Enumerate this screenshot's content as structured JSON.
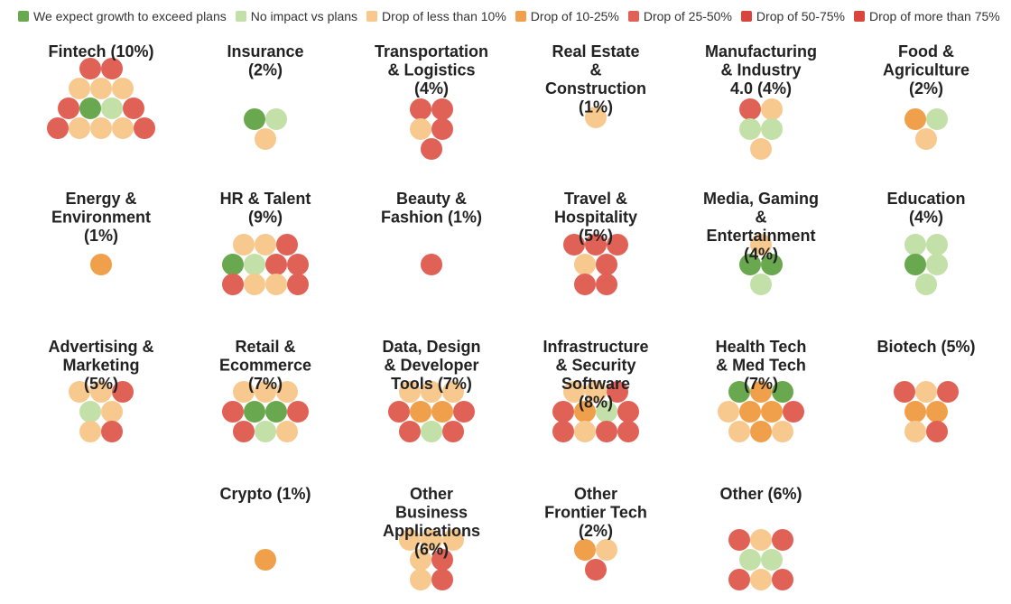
{
  "chart_data": {
    "type": "bubble-grid",
    "categories": [
      {
        "key": "no_growth",
        "label": "We expect growth to exceed plans",
        "color": "#6aa84f"
      },
      {
        "key": "no_impact",
        "label": "No impact vs plans",
        "color": "#c2e0a8"
      },
      {
        "key": "drop_lt10",
        "label": "Drop of less than 10%",
        "color": "#f7c98f"
      },
      {
        "key": "drop_10_25",
        "label": "Drop of 10-25%",
        "color": "#f0a04a"
      },
      {
        "key": "drop_25_50",
        "label": "Drop of 25-50%",
        "color": "#e06155"
      },
      {
        "key": "drop_50_75",
        "label": "Drop of 50-75%",
        "color": "#d9453d"
      },
      {
        "key": "drop_gt75",
        "label": "Drop of more than 75%",
        "color": "#d9453d"
      }
    ],
    "panels": [
      {
        "title": "Fintech (10%)",
        "dots": [
          "drop_25_50",
          "drop_25_50",
          "drop_lt10",
          "drop_lt10",
          "drop_lt10",
          "drop_25_50",
          "no_growth",
          "no_impact",
          "drop_25_50",
          "drop_25_50",
          "drop_lt10",
          "drop_lt10",
          "drop_lt10",
          "drop_25_50"
        ]
      },
      {
        "title": "Insurance (2%)",
        "dots": [
          "no_growth",
          "no_impact",
          "drop_lt10"
        ]
      },
      {
        "title": "Transportation & Logistics (4%)",
        "dots": [
          "drop_25_50",
          "drop_25_50",
          "drop_lt10",
          "drop_25_50",
          "drop_25_50"
        ]
      },
      {
        "title": "Real Estate & Construction (1%)",
        "dots": [
          "drop_lt10"
        ]
      },
      {
        "title": "Manufacturing & Industry 4.0 (4%)",
        "dots": [
          "drop_25_50",
          "drop_lt10",
          "no_impact",
          "no_impact",
          "drop_lt10"
        ]
      },
      {
        "title": "Food & Agriculture (2%)",
        "dots": [
          "drop_10_25",
          "no_impact",
          "drop_lt10"
        ]
      },
      {
        "title": "Energy & Environment (1%)",
        "dots": [
          "drop_10_25"
        ]
      },
      {
        "title": "HR & Talent (9%)",
        "dots": [
          "drop_lt10",
          "drop_lt10",
          "drop_25_50",
          "no_growth",
          "no_impact",
          "drop_25_50",
          "drop_25_50",
          "drop_25_50",
          "drop_lt10",
          "drop_lt10",
          "drop_25_50"
        ]
      },
      {
        "title": "Beauty & Fashion (1%)",
        "dots": [
          "drop_25_50"
        ]
      },
      {
        "title": "Travel & Hospitality (5%)",
        "dots": [
          "drop_25_50",
          "drop_25_50",
          "drop_25_50",
          "drop_lt10",
          "drop_25_50",
          "drop_25_50",
          "drop_25_50"
        ]
      },
      {
        "title": "Media, Gaming & Entertainment (4%)",
        "dots": [
          "drop_lt10",
          "no_growth",
          "no_growth",
          "no_impact"
        ]
      },
      {
        "title": "Education (4%)",
        "dots": [
          "no_impact",
          "no_impact",
          "no_growth",
          "no_impact",
          "no_impact"
        ]
      },
      {
        "title": "Advertising & Marketing (5%)",
        "dots": [
          "drop_lt10",
          "drop_lt10",
          "drop_25_50",
          "no_impact",
          "drop_lt10",
          "drop_lt10",
          "drop_25_50"
        ]
      },
      {
        "title": "Retail & Ecommerce (7%)",
        "dots": [
          "drop_lt10",
          "drop_lt10",
          "drop_lt10",
          "drop_25_50",
          "no_growth",
          "no_growth",
          "drop_25_50",
          "drop_25_50",
          "no_impact",
          "drop_lt10"
        ]
      },
      {
        "title": "Data, Design & Developer Tools (7%)",
        "dots": [
          "drop_lt10",
          "drop_lt10",
          "drop_lt10",
          "drop_25_50",
          "drop_10_25",
          "drop_10_25",
          "drop_25_50",
          "drop_25_50",
          "no_impact",
          "drop_25_50"
        ]
      },
      {
        "title": "Infrastructure & Security Software (8%)",
        "dots": [
          "drop_lt10",
          "drop_lt10",
          "drop_25_50",
          "drop_25_50",
          "drop_10_25",
          "no_impact",
          "drop_25_50",
          "drop_25_50",
          "drop_lt10",
          "drop_25_50",
          "drop_25_50"
        ]
      },
      {
        "title": "Health Tech & Med Tech (7%)",
        "dots": [
          "no_growth",
          "drop_10_25",
          "no_growth",
          "drop_lt10",
          "drop_10_25",
          "drop_10_25",
          "drop_25_50",
          "drop_lt10",
          "drop_10_25",
          "drop_lt10"
        ]
      },
      {
        "title": "Biotech (5%)",
        "dots": [
          "drop_25_50",
          "drop_lt10",
          "drop_25_50",
          "drop_10_25",
          "drop_10_25",
          "drop_lt10",
          "drop_25_50"
        ]
      },
      {
        "title": "Crypto (1%)",
        "dots": [
          "drop_10_25"
        ]
      },
      {
        "title": "Other Business Applications (6%)",
        "dots": [
          "drop_lt10",
          "drop_lt10",
          "drop_lt10",
          "drop_lt10",
          "drop_25_50",
          "drop_lt10",
          "drop_25_50"
        ]
      },
      {
        "title": "Other Frontier Tech (2%)",
        "dots": [
          "drop_10_25",
          "drop_lt10",
          "drop_25_50"
        ]
      },
      {
        "title": "Other (6%)",
        "dots": [
          "drop_25_50",
          "drop_lt10",
          "drop_25_50",
          "no_impact",
          "no_impact",
          "drop_25_50",
          "drop_lt10",
          "drop_25_50"
        ]
      }
    ]
  }
}
